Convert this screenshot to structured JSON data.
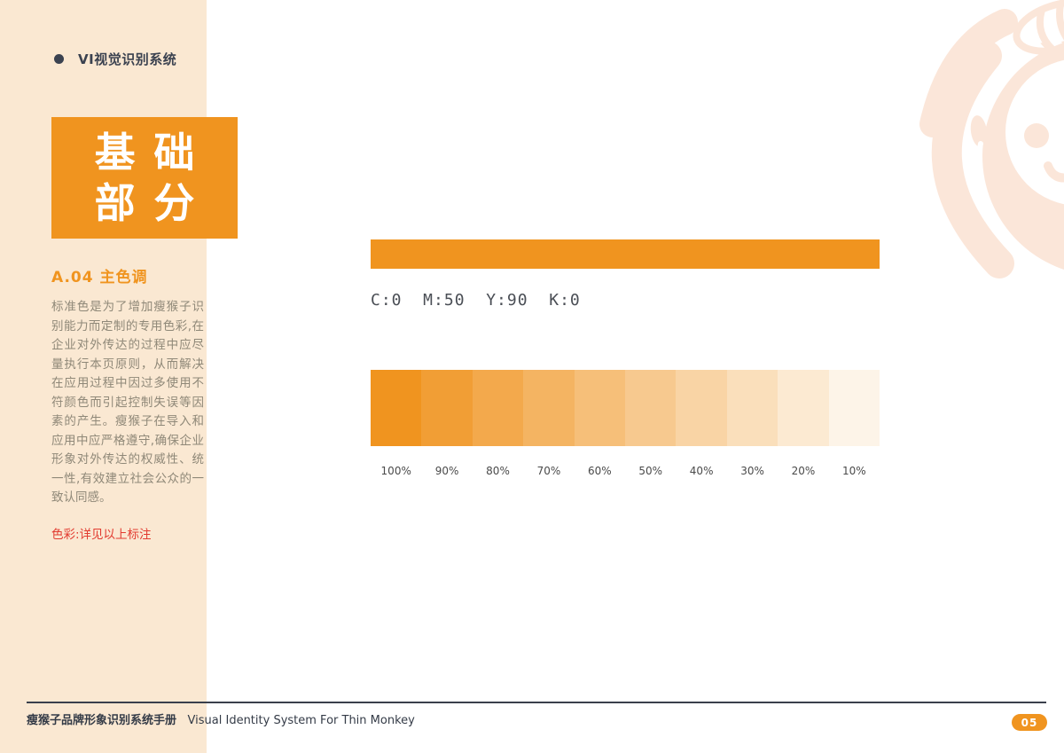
{
  "header": {
    "title": "VI视觉识别系统"
  },
  "section_box": {
    "line1": "基础",
    "line2": "部分"
  },
  "section": {
    "heading": "A.04 主色调",
    "body_text": "标准色是为了增加瘦猴子识别能力而定制的专用色彩,在企业对外传达的过程中应尽量执行本页原则，从而解决在应用过程中因过多使用不符颜色而引起控制失误等因素的产生。瘦猴子在导入和应用中应严格遵守,确保企业形象对外传达的权威性、统一性,有效建立社会公众的一致认同感。",
    "color_note": "色彩:详见以上标注"
  },
  "color_spec": {
    "cmyk_label": "C:0  M:50  Y:90  K:0",
    "primary_hex": "#F0941F",
    "tints": [
      {
        "label": "100%",
        "opacity": 1.0
      },
      {
        "label": "90%",
        "opacity": 0.9
      },
      {
        "label": "80%",
        "opacity": 0.8
      },
      {
        "label": "70%",
        "opacity": 0.7
      },
      {
        "label": "60%",
        "opacity": 0.6
      },
      {
        "label": "50%",
        "opacity": 0.5
      },
      {
        "label": "40%",
        "opacity": 0.4
      },
      {
        "label": "30%",
        "opacity": 0.3
      },
      {
        "label": "20%",
        "opacity": 0.2
      },
      {
        "label": "10%",
        "opacity": 0.1
      }
    ]
  },
  "footer": {
    "text_cn": "瘦猴子品牌形象识别系统手册",
    "text_en": "Visual Identity System For Thin Monkey",
    "page_number": "05"
  },
  "colors": {
    "primary": "#F0941F",
    "sidebar_bg": "#FAE8D2",
    "logo_peach": "#FBE6D9",
    "footer_dark": "#3A404C",
    "note_red": "#E23B30",
    "body_text_gray": "#8F8878",
    "label_gray": "#4A4A4A"
  }
}
